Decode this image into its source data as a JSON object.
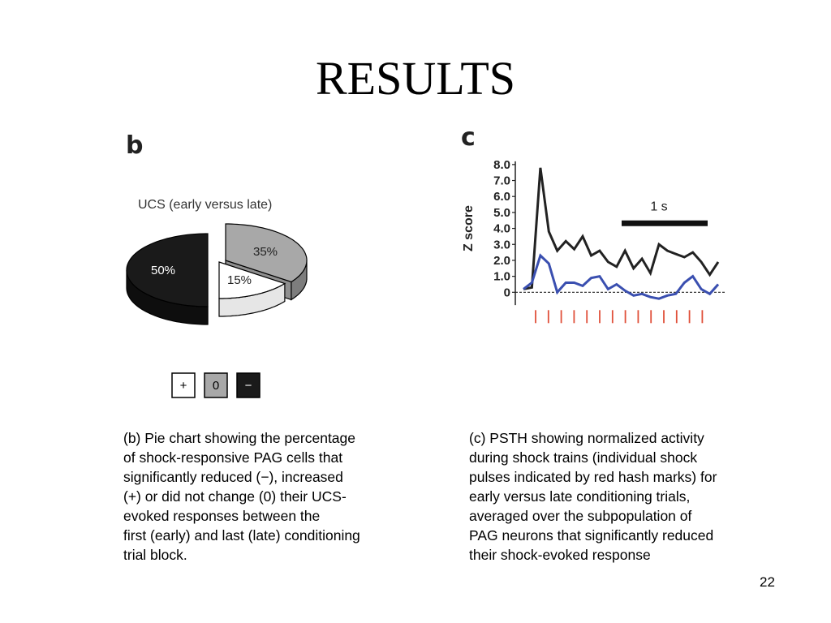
{
  "slide": {
    "title": "RESULTS",
    "page_number": "22"
  },
  "panel_b": {
    "letter": "b",
    "legend": [
      {
        "symbol": "+",
        "fill": "#ffffff",
        "text_color": "#000000"
      },
      {
        "symbol": "0",
        "fill": "#a8a8a8",
        "text_color": "#000000"
      },
      {
        "symbol": "−",
        "fill": "#1a1a1a",
        "text_color": "#ffffff"
      }
    ],
    "caption_lines": [
      "(b) Pie chart showing the percentage",
      "of shock-responsive PAG cells that",
      "significantly reduced (−), increased",
      "(+) or did not change (0) their UCS-",
      "evoked responses between the",
      "first (early) and last (late) conditioning",
      "trial block."
    ]
  },
  "panel_c": {
    "letter": "c",
    "scale_bar_label": "1 s",
    "caption_lines": [
      "(c) PSTH showing normalized activity",
      "during shock trains (individual shock",
      "pulses indicated by red hash marks) for",
      "early versus late conditioning trials,",
      "averaged over the subpopulation of",
      "PAG neurons that significantly reduced",
      "their shock-evoked response"
    ]
  },
  "chart_data": [
    {
      "type": "pie",
      "title": "UCS (early versus late)",
      "categories": [
        "−",
        "0",
        "+"
      ],
      "values": [
        50,
        35,
        15
      ],
      "labels": [
        "50%",
        "35%",
        "15%"
      ],
      "colors": [
        "#1a1a1a",
        "#a8a8a8",
        "#ffffff"
      ],
      "style": "3d-exploded"
    },
    {
      "type": "line",
      "title": "",
      "xlabel": "",
      "ylabel": "Z score",
      "ylim": [
        -1,
        8.5
      ],
      "yticks": [
        "8.0",
        "7.0",
        "6.0",
        "5.0",
        "4.0",
        "3.0",
        "2.0",
        "1.0",
        "0"
      ],
      "x": [
        0,
        1,
        2,
        3,
        4,
        5,
        6,
        7,
        8,
        9,
        10,
        11,
        12,
        13,
        14,
        15,
        16,
        17,
        18,
        19,
        20,
        21,
        22,
        23,
        24,
        25,
        26,
        27,
        28,
        29,
        30
      ],
      "series": [
        {
          "color": "#222222",
          "values": [
            0.2,
            0.3,
            7.8,
            3.8,
            2.6,
            3.2,
            2.7,
            3.5,
            2.3,
            2.6,
            1.9,
            1.6,
            2.6,
            1.5,
            2.1,
            1.2,
            3.0,
            2.6,
            2.4,
            2.2,
            2.5,
            1.9,
            1.1,
            1.9,
            null,
            null,
            null,
            null,
            null,
            null,
            null
          ]
        },
        {
          "color": "#3a4fb0",
          "values": [
            0.2,
            0.6,
            2.3,
            1.8,
            0.0,
            0.6,
            0.6,
            0.4,
            0.9,
            1.0,
            0.2,
            0.5,
            0.1,
            -0.2,
            -0.1,
            -0.3,
            -0.4,
            -0.2,
            -0.1,
            0.6,
            1.0,
            0.2,
            -0.1,
            0.5,
            null,
            null,
            null,
            null,
            null,
            null,
            null
          ]
        }
      ],
      "baseline": 0,
      "shock_pulse_count": 14,
      "shock_pulse_color": "#e0503a",
      "scale_bar": "1 s"
    }
  ]
}
